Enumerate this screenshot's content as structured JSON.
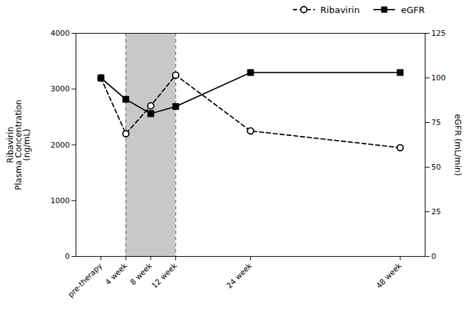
{
  "chart_data": {
    "type": "line",
    "x": [
      0,
      4,
      8,
      12,
      24,
      48
    ],
    "xlim": [
      -4,
      52
    ],
    "xticks": [
      {
        "value": 0,
        "label": "pre-therapy"
      },
      {
        "value": 4,
        "label": "4 week"
      },
      {
        "value": 8,
        "label": "8 week"
      },
      {
        "value": 12,
        "label": "12 week"
      },
      {
        "value": 24,
        "label": "24 week"
      },
      {
        "value": 48,
        "label": "48 week"
      }
    ],
    "ylabel": "Ribavirin\nPlasma Concentration\n(ng/mL)",
    "ylim": [
      0,
      4000
    ],
    "yticks": [
      0,
      1000,
      2000,
      3000,
      4000
    ],
    "y2label": "eGFR (mL/min)",
    "y2lim": [
      0,
      125
    ],
    "y2ticks": [
      0,
      25,
      50,
      75,
      100,
      125
    ],
    "series": [
      {
        "name": "Ribavirin",
        "color": "#000000",
        "line_style": "dashed",
        "marker": "circle",
        "values": [
          3200,
          2200,
          2700,
          3250,
          2250,
          1950
        ]
      },
      {
        "name": "eGFR",
        "color": "#000000",
        "line_style": "solid",
        "marker": "square",
        "axis": "y2",
        "values": [
          100,
          88,
          80,
          84,
          103,
          103
        ]
      }
    ],
    "spans": [
      {
        "start": 4,
        "end": 12,
        "color": "#c8c8c8"
      }
    ],
    "legend": "right"
  }
}
